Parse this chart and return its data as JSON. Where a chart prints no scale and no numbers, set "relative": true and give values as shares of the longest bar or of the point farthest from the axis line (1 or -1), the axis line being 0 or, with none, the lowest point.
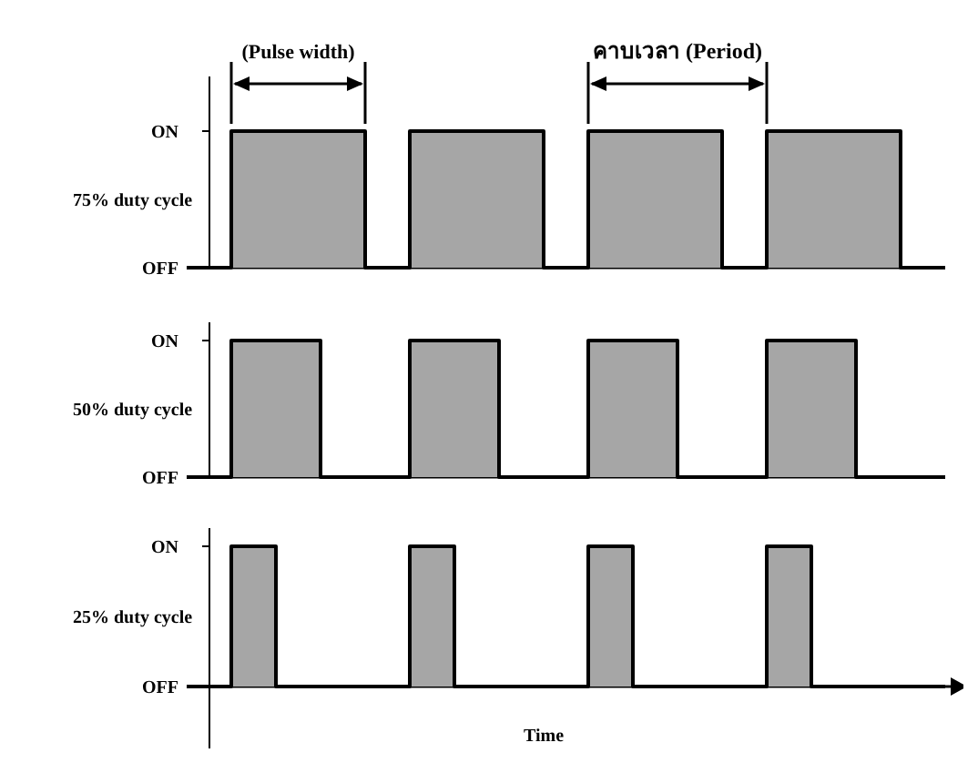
{
  "chart_data": [
    {
      "type": "step",
      "relative": true,
      "ylabel": "75% duty cycle",
      "annotations": [
        "(Pulse width)",
        "คาบเวลา (Period)",
        "ON",
        "OFF"
      ],
      "categories": [
        null,
        null,
        null,
        null,
        null,
        null,
        null,
        null,
        null,
        null,
        null,
        null,
        null,
        null,
        null,
        null,
        null,
        null
      ],
      "series": [
        {
          "color": "#000000",
          "values": [
            0,
            1,
            1,
            1,
            0,
            1,
            1,
            1,
            0,
            1,
            1,
            1,
            0,
            1,
            1,
            1,
            0,
            0
          ]
        }
      ]
    },
    {
      "type": "step",
      "relative": true,
      "ylabel": "50% duty cycle",
      "annotations": [
        "ON",
        "OFF"
      ],
      "categories": [
        null,
        null,
        null,
        null,
        null,
        null,
        null,
        null,
        null,
        null,
        null,
        null,
        null,
        null,
        null,
        null,
        null,
        null
      ],
      "series": [
        {
          "color": "#000000",
          "values": [
            0,
            1,
            1,
            0,
            0,
            1,
            1,
            0,
            0,
            1,
            1,
            0,
            0,
            1,
            1,
            0,
            0,
            0
          ]
        }
      ]
    },
    {
      "type": "step",
      "relative": true,
      "ylabel": "25% duty cycle",
      "xlabel": "Time",
      "annotations": [
        "ON",
        "OFF"
      ],
      "categories": [
        null,
        null,
        null,
        null,
        null,
        null,
        null,
        null,
        null,
        null,
        null,
        null,
        null,
        null,
        null,
        null,
        null,
        null
      ],
      "series": [
        {
          "color": "#000000",
          "values": [
            0,
            1,
            0,
            0,
            0,
            1,
            0,
            0,
            0,
            1,
            0,
            0,
            0,
            1,
            0,
            0,
            0,
            0
          ]
        }
      ]
    }
  ]
}
